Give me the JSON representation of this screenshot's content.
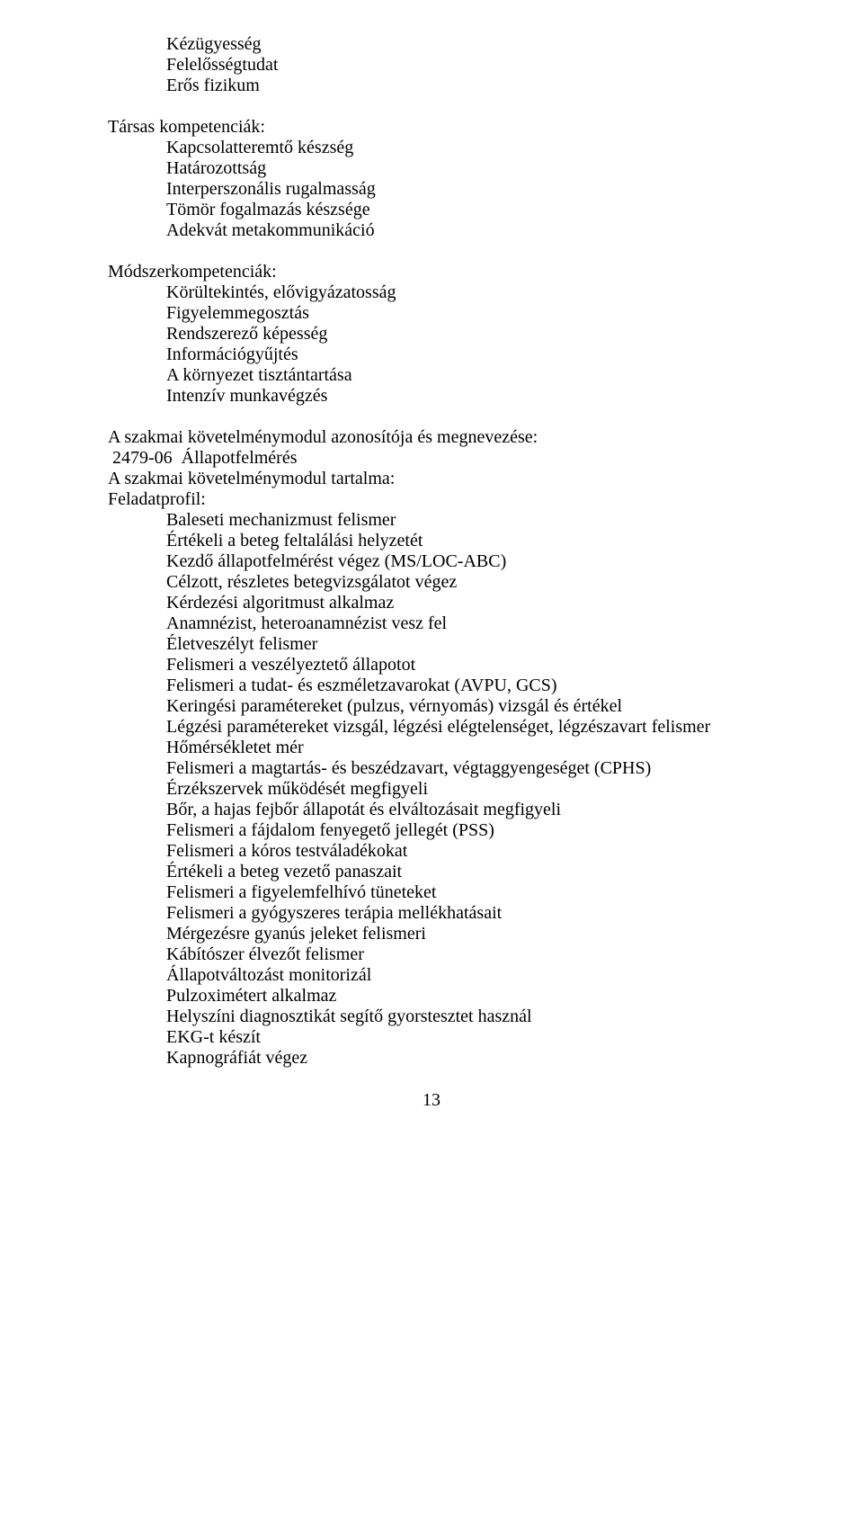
{
  "topItems": [
    "Kézügyesség",
    "Felelősségtudat",
    "Erős fizikum"
  ],
  "socialHeading": "Társas kompetenciák:",
  "socialItems": [
    "Kapcsolatteremtő készség",
    "Határozottság",
    "Interperszonális rugalmasság",
    "Tömör fogalmazás készsége",
    "Adekvát metakommunikáció"
  ],
  "methodHeading": "Módszerkompetenciák:",
  "methodItems": [
    "Körültekintés, elővigyázatosság",
    "Figyelemmegosztás",
    "Rendszerező képesség",
    "Információgyűjtés",
    "A környezet tisztántartása",
    "Intenzív munkavégzés"
  ],
  "modulIdLine": "A szakmai követelménymodul azonosítója és megnevezése:",
  "modulCode": " 2479-06  Állapotfelmérés",
  "modulContentLine": "A szakmai követelménymodul tartalma:",
  "feladatprofil": "Feladatprofil:",
  "tasks": [
    "Baleseti mechanizmust felismer",
    "Értékeli a beteg feltalálási helyzetét",
    "Kezdő állapotfelmérést végez (MS/LOC-ABC)",
    "Célzott, részletes betegvizsgálatot végez",
    "Kérdezési algoritmust alkalmaz",
    "Anamnézist, heteroanamnézist vesz fel",
    "Életveszélyt felismer",
    "Felismeri a veszélyeztető állapotot",
    "Felismeri a tudat- és eszméletzavarokat (AVPU, GCS)",
    "Keringési paramétereket (pulzus, vérnyomás) vizsgál és értékel",
    "Légzési paramétereket vizsgál, légzési elégtelenséget, légzészavart felismer",
    "Hőmérsékletet mér",
    "Felismeri a magtartás- és beszédzavart, végtaggyengeséget (CPHS)",
    "Érzékszervek működését megfigyeli",
    "Bőr, a hajas fejbőr állapotát és elváltozásait megfigyeli",
    "Felismeri a fájdalom fenyegető jellegét (PSS)",
    "Felismeri a kóros testváladékokat",
    "Értékeli a beteg vezető panaszait",
    "Felismeri a figyelemfelhívó tüneteket",
    "Felismeri a gyógyszeres terápia mellékhatásait",
    "Mérgezésre gyanús jeleket felismeri",
    "Kábítószer élvezőt felismer",
    "Állapotváltozást monitorizál",
    "Pulzoximétert alkalmaz",
    "Helyszíni diagnosztikát segítő gyorstesztet használ",
    "EKG-t készít",
    "Kapnográfiát végez"
  ],
  "pageNumber": "13"
}
